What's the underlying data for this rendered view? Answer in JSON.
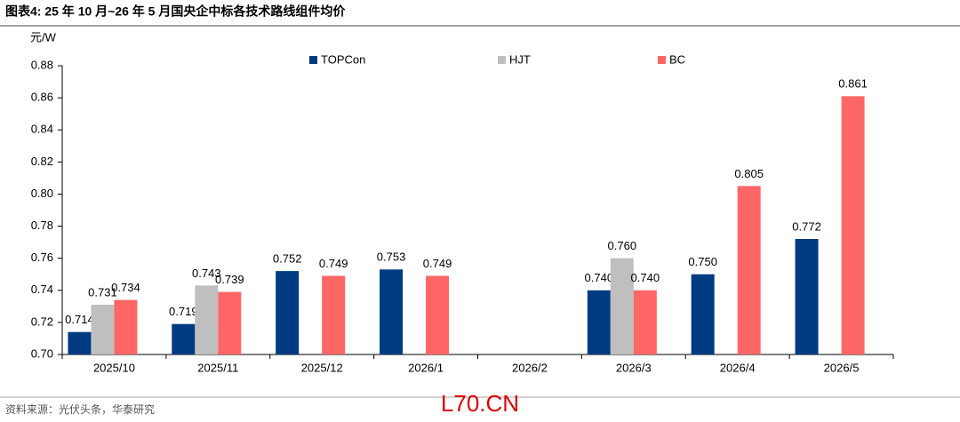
{
  "chart_data": {
    "type": "bar",
    "title": "图表4:  25 年 10 月~26 年 5 月国央企中标各技术路线组件均价",
    "unit": "元/W",
    "source": "资料来源：光伏头条，华泰研究",
    "watermark": "L70.CN",
    "categories": [
      "2025/10",
      "2025/11",
      "2025/12",
      "2026/1",
      "2026/2",
      "2026/3",
      "2026/4",
      "2026/5"
    ],
    "series": [
      {
        "name": "TOPCon",
        "color": "#003a80",
        "values": [
          0.714,
          0.719,
          0.752,
          0.753,
          null,
          0.74,
          0.75,
          0.772
        ],
        "value_labels": [
          "0.714",
          "0.719",
          "0.752",
          "0.753",
          null,
          "0.740",
          "0.750",
          "0.772"
        ]
      },
      {
        "name": "HJT",
        "color": "#bfbfbf",
        "values": [
          0.731,
          0.743,
          null,
          null,
          null,
          0.76,
          null,
          null
        ],
        "value_labels": [
          "0.731",
          "0.743",
          null,
          null,
          null,
          "0.760",
          null,
          null
        ]
      },
      {
        "name": "BC",
        "color": "#ff6666",
        "values": [
          0.734,
          0.739,
          0.749,
          0.749,
          null,
          0.74,
          0.805,
          0.861
        ],
        "value_labels": [
          "0.734",
          "0.739",
          "0.749",
          "0.749",
          null,
          "0.740",
          "0.805",
          "0.861"
        ]
      }
    ],
    "ylim": [
      0.7,
      0.88
    ],
    "yticks": [
      {
        "value": 0.7,
        "label": "0.70"
      },
      0.72,
      0.74,
      0.76,
      0.78,
      {
        "value": 0.8,
        "label": "0.80"
      },
      0.82,
      0.84,
      0.86,
      0.88
    ],
    "legend": "top"
  }
}
